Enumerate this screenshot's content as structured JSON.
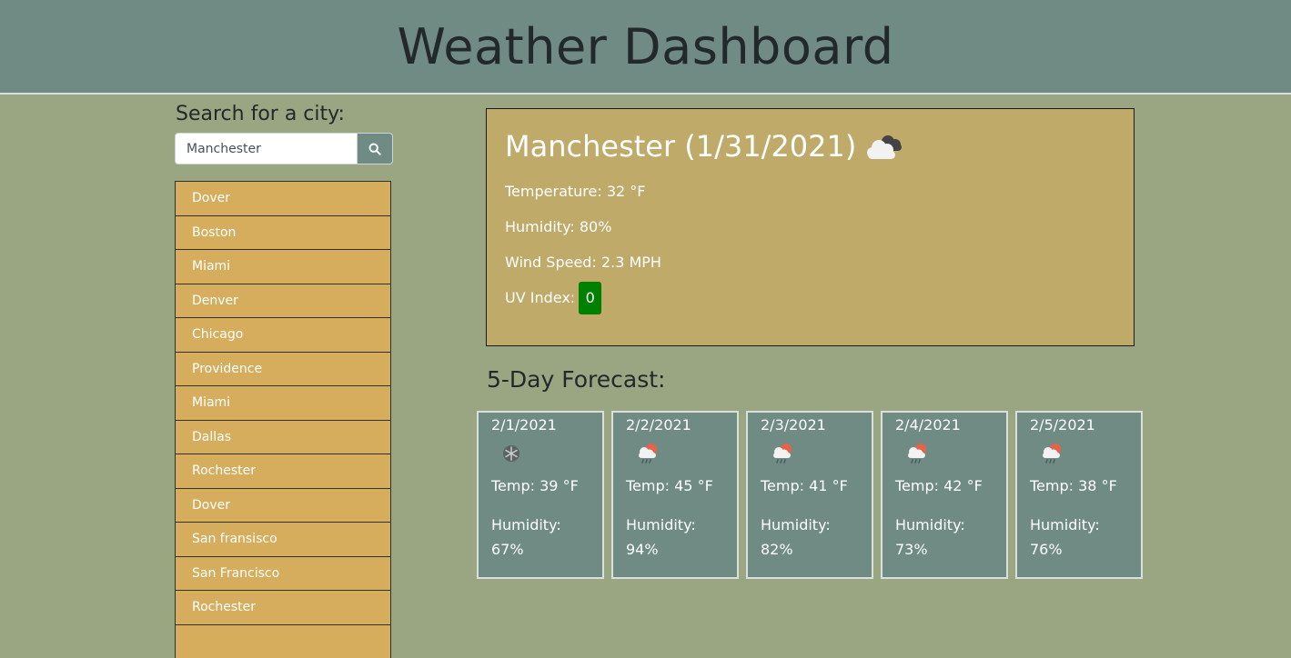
{
  "header": {
    "title": "Weather Dashboard"
  },
  "search": {
    "label": "Search for a city:",
    "value": "Manchester",
    "button_icon": "search-icon"
  },
  "history": [
    "Dover",
    "Boston",
    "Miami",
    "Denver",
    "Chicago",
    "Providence",
    "Miami",
    "Dallas",
    "Rochester",
    "Dover",
    "San fransisco",
    "San Francisco",
    "Rochester",
    ""
  ],
  "current": {
    "heading": "Manchester (1/31/2021)",
    "icon": "cloudy-icon",
    "temperature": "Temperature: 32 °F",
    "humidity": "Humidity: 80%",
    "wind": "Wind Speed: 2.3 MPH",
    "uv_label": "UV Index:",
    "uv_value": "0",
    "uv_color": "#008000"
  },
  "forecast": {
    "title": "5-Day Forecast:",
    "days": [
      {
        "date": "2/1/2021",
        "icon": "snow-icon",
        "temp": "Temp: 39 °F",
        "humidity_label": "Humidity:",
        "humidity": "67%"
      },
      {
        "date": "2/2/2021",
        "icon": "rain-sun-icon",
        "temp": "Temp: 45 °F",
        "humidity_label": "Humidity:",
        "humidity": "94%"
      },
      {
        "date": "2/3/2021",
        "icon": "rain-sun-icon",
        "temp": "Temp: 41 °F",
        "humidity_label": "Humidity:",
        "humidity": "82%"
      },
      {
        "date": "2/4/2021",
        "icon": "rain-sun-icon",
        "temp": "Temp: 42 °F",
        "humidity_label": "Humidity:",
        "humidity": "73%"
      },
      {
        "date": "2/5/2021",
        "icon": "rain-sun-icon",
        "temp": "Temp: 38 °F",
        "humidity_label": "Humidity:",
        "humidity": "76%"
      }
    ]
  },
  "colors": {
    "header_bg": "#6f8b84",
    "page_bg": "#9aa682",
    "list_item_bg": "#d6ad5c",
    "current_bg": "#bfaa69",
    "card_bg": "#6f8b84"
  }
}
